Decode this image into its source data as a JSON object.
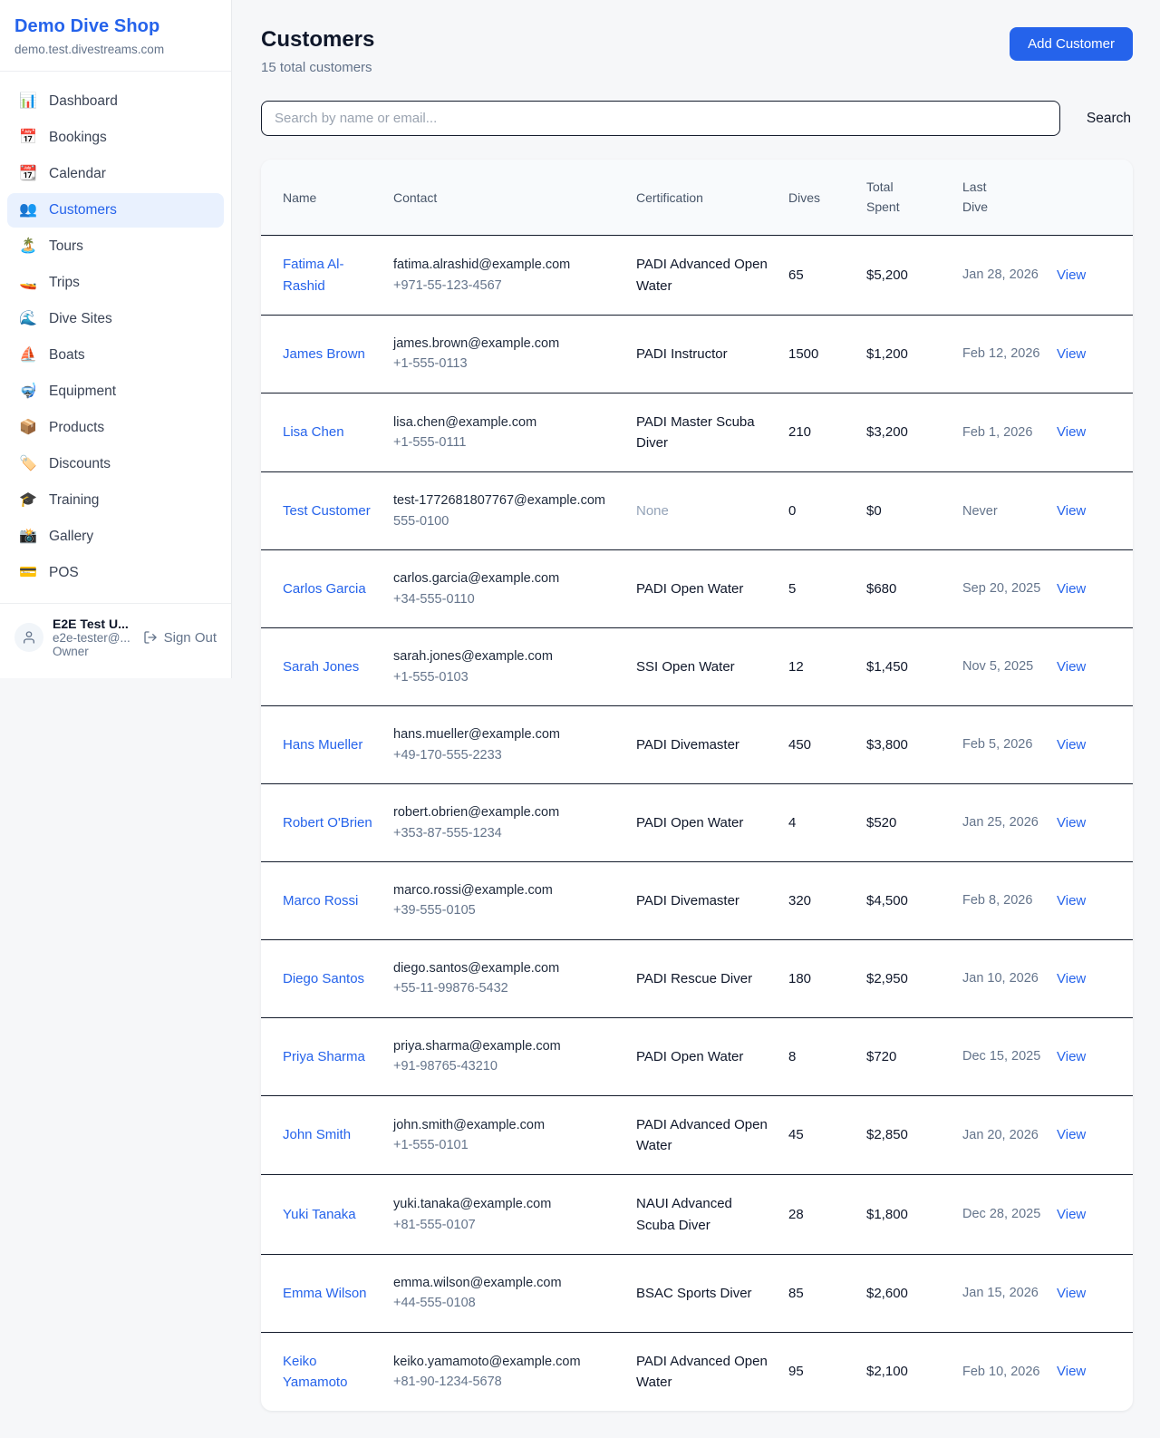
{
  "brand": {
    "name": "Demo Dive Shop",
    "domain": "demo.test.divestreams.com"
  },
  "sidebar": {
    "items": [
      {
        "label": "Dashboard",
        "icon": "📊",
        "icon_name": "bar-chart-icon",
        "active": false
      },
      {
        "label": "Bookings",
        "icon": "📅",
        "icon_name": "calendar-date-icon",
        "active": false
      },
      {
        "label": "Calendar",
        "icon": "📆",
        "icon_name": "tear-off-calendar-icon",
        "active": false
      },
      {
        "label": "Customers",
        "icon": "👥",
        "icon_name": "people-icon",
        "active": true
      },
      {
        "label": "Tours",
        "icon": "🏝️",
        "icon_name": "island-icon",
        "active": false
      },
      {
        "label": "Trips",
        "icon": "🚤",
        "icon_name": "speedboat-icon",
        "active": false
      },
      {
        "label": "Dive Sites",
        "icon": "🌊",
        "icon_name": "wave-icon",
        "active": false
      },
      {
        "label": "Boats",
        "icon": "⛵",
        "icon_name": "sailboat-icon",
        "active": false
      },
      {
        "label": "Equipment",
        "icon": "🤿",
        "icon_name": "diving-mask-icon",
        "active": false
      },
      {
        "label": "Products",
        "icon": "📦",
        "icon_name": "package-icon",
        "active": false
      },
      {
        "label": "Discounts",
        "icon": "🏷️",
        "icon_name": "label-tag-icon",
        "active": false
      },
      {
        "label": "Training",
        "icon": "🎓",
        "icon_name": "graduation-cap-icon",
        "active": false
      },
      {
        "label": "Gallery",
        "icon": "📸",
        "icon_name": "camera-flash-icon",
        "active": false
      },
      {
        "label": "POS",
        "icon": "💳",
        "icon_name": "credit-card-icon",
        "active": false
      }
    ]
  },
  "user": {
    "name": "E2E Test U...",
    "email": "e2e-tester@...",
    "role": "Owner",
    "sign_out_label": "Sign Out"
  },
  "header": {
    "title": "Customers",
    "subtitle": "15 total customers",
    "add_button_label": "Add Customer"
  },
  "search": {
    "placeholder": "Search by name or email...",
    "button_label": "Search"
  },
  "table": {
    "headers": [
      "Name",
      "Contact",
      "Certification",
      "Dives",
      "Total Spent",
      "Last Dive",
      ""
    ],
    "view_label": "View",
    "rows": [
      {
        "name": "Fatima Al-Rashid",
        "email": "fatima.alrashid@example.com",
        "phone": "+971-55-123-4567",
        "certification": "PADI Advanced Open Water",
        "dives": "65",
        "total_spent": "$5,200",
        "last_dive": "Jan 28, 2026"
      },
      {
        "name": "James Brown",
        "email": "james.brown@example.com",
        "phone": "+1-555-0113",
        "certification": "PADI Instructor",
        "dives": "1500",
        "total_spent": "$1,200",
        "last_dive": "Feb 12, 2026"
      },
      {
        "name": "Lisa Chen",
        "email": "lisa.chen@example.com",
        "phone": "+1-555-0111",
        "certification": "PADI Master Scuba Diver",
        "dives": "210",
        "total_spent": "$3,200",
        "last_dive": "Feb 1, 2026"
      },
      {
        "name": "Test Customer",
        "email": "test-1772681807767@example.com",
        "phone": "555-0100",
        "certification": "None",
        "dives": "0",
        "total_spent": "$0",
        "last_dive": "Never"
      },
      {
        "name": "Carlos Garcia",
        "email": "carlos.garcia@example.com",
        "phone": "+34-555-0110",
        "certification": "PADI Open Water",
        "dives": "5",
        "total_spent": "$680",
        "last_dive": "Sep 20, 2025"
      },
      {
        "name": "Sarah Jones",
        "email": "sarah.jones@example.com",
        "phone": "+1-555-0103",
        "certification": "SSI Open Water",
        "dives": "12",
        "total_spent": "$1,450",
        "last_dive": "Nov 5, 2025"
      },
      {
        "name": "Hans Mueller",
        "email": "hans.mueller@example.com",
        "phone": "+49-170-555-2233",
        "certification": "PADI Divemaster",
        "dives": "450",
        "total_spent": "$3,800",
        "last_dive": "Feb 5, 2026"
      },
      {
        "name": "Robert O'Brien",
        "email": "robert.obrien@example.com",
        "phone": "+353-87-555-1234",
        "certification": "PADI Open Water",
        "dives": "4",
        "total_spent": "$520",
        "last_dive": "Jan 25, 2026"
      },
      {
        "name": "Marco Rossi",
        "email": "marco.rossi@example.com",
        "phone": "+39-555-0105",
        "certification": "PADI Divemaster",
        "dives": "320",
        "total_spent": "$4,500",
        "last_dive": "Feb 8, 2026"
      },
      {
        "name": "Diego Santos",
        "email": "diego.santos@example.com",
        "phone": "+55-11-99876-5432",
        "certification": "PADI Rescue Diver",
        "dives": "180",
        "total_spent": "$2,950",
        "last_dive": "Jan 10, 2026"
      },
      {
        "name": "Priya Sharma",
        "email": "priya.sharma@example.com",
        "phone": "+91-98765-43210",
        "certification": "PADI Open Water",
        "dives": "8",
        "total_spent": "$720",
        "last_dive": "Dec 15, 2025"
      },
      {
        "name": "John Smith",
        "email": "john.smith@example.com",
        "phone": "+1-555-0101",
        "certification": "PADI Advanced Open Water",
        "dives": "45",
        "total_spent": "$2,850",
        "last_dive": "Jan 20, 2026"
      },
      {
        "name": "Yuki Tanaka",
        "email": "yuki.tanaka@example.com",
        "phone": "+81-555-0107",
        "certification": "NAUI Advanced Scuba Diver",
        "dives": "28",
        "total_spent": "$1,800",
        "last_dive": "Dec 28, 2025"
      },
      {
        "name": "Emma Wilson",
        "email": "emma.wilson@example.com",
        "phone": "+44-555-0108",
        "certification": "BSAC Sports Diver",
        "dives": "85",
        "total_spent": "$2,600",
        "last_dive": "Jan 15, 2026"
      },
      {
        "name": "Keiko Yamamoto",
        "email": "keiko.yamamoto@example.com",
        "phone": "+81-90-1234-5678",
        "certification": "PADI Advanced Open Water",
        "dives": "95",
        "total_spent": "$2,100",
        "last_dive": "Feb 10, 2026"
      }
    ]
  },
  "colors": {
    "accent": "#2563eb",
    "active_item_bg": "#e9f1fe",
    "page_bg": "#f6f7f9",
    "table_header_bg": "#f8fafc",
    "divider_dark": "#141c2c"
  }
}
